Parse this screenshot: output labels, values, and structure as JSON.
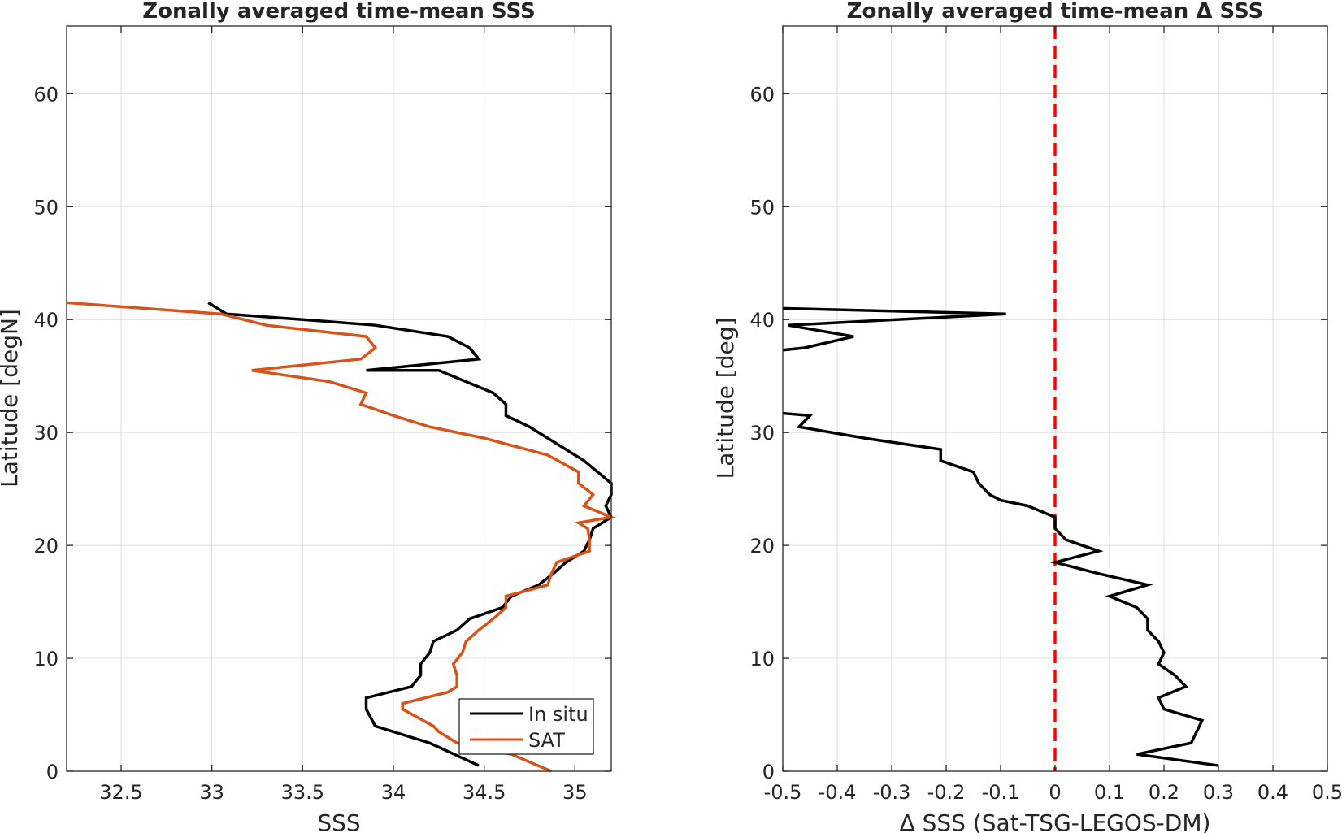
{
  "chart_data": [
    {
      "type": "line",
      "title": "Zonally averaged time-mean SSS",
      "xlabel": "SSS",
      "ylabel": "Latitude [degN]",
      "xlim": [
        32.2,
        35.2
      ],
      "ylim": [
        0,
        66
      ],
      "xticks": [
        32.5,
        33,
        33.5,
        34,
        34.5,
        35
      ],
      "xtick_labels": [
        "32.5",
        "33",
        "33.5",
        "34",
        "34.5",
        "35"
      ],
      "yticks": [
        0,
        10,
        20,
        30,
        40,
        50,
        60
      ],
      "ytick_labels": [
        "0",
        "10",
        "20",
        "30",
        "40",
        "50",
        "60"
      ],
      "grid": true,
      "legend": {
        "position": "bottom-right"
      },
      "series": [
        {
          "name": "In situ",
          "color": "#000000",
          "points": [
            [
              34.47,
              0.5
            ],
            [
              34.2,
              2.5
            ],
            [
              33.9,
              4.0
            ],
            [
              33.85,
              5.5
            ],
            [
              33.85,
              6.5
            ],
            [
              34.1,
              7.5
            ],
            [
              34.15,
              8.5
            ],
            [
              34.15,
              9.5
            ],
            [
              34.2,
              10.5
            ],
            [
              34.22,
              11.5
            ],
            [
              34.35,
              12.5
            ],
            [
              34.42,
              13.5
            ],
            [
              34.6,
              14.5
            ],
            [
              34.65,
              15.5
            ],
            [
              34.8,
              16.5
            ],
            [
              34.88,
              17.5
            ],
            [
              34.95,
              18.5
            ],
            [
              35.05,
              19.5
            ],
            [
              35.08,
              20.5
            ],
            [
              35.1,
              21.5
            ],
            [
              35.2,
              22.5
            ],
            [
              35.17,
              23.5
            ],
            [
              35.2,
              24.5
            ],
            [
              35.2,
              25.5
            ],
            [
              35.05,
              27.5
            ],
            [
              34.95,
              28.5
            ],
            [
              34.85,
              29.5
            ],
            [
              34.75,
              30.5
            ],
            [
              34.62,
              31.5
            ],
            [
              34.62,
              32.5
            ],
            [
              34.55,
              33.5
            ],
            [
              34.4,
              34.5
            ],
            [
              34.25,
              35.5
            ],
            [
              33.85,
              35.5
            ],
            [
              34.47,
              36.5
            ],
            [
              34.42,
              37.5
            ],
            [
              34.3,
              38.5
            ],
            [
              34.1,
              39.0
            ],
            [
              33.9,
              39.5
            ],
            [
              33.5,
              40.0
            ],
            [
              33.08,
              40.5
            ],
            [
              32.98,
              41.5
            ]
          ]
        },
        {
          "name": "SAT",
          "color": "#d95319",
          "points": [
            [
              34.87,
              0.0
            ],
            [
              34.65,
              1.5
            ],
            [
              34.35,
              2.5
            ],
            [
              34.25,
              3.5
            ],
            [
              34.22,
              4.0
            ],
            [
              34.05,
              5.5
            ],
            [
              34.05,
              6.0
            ],
            [
              34.3,
              7.0
            ],
            [
              34.35,
              7.5
            ],
            [
              34.35,
              8.5
            ],
            [
              34.33,
              9.5
            ],
            [
              34.38,
              10.5
            ],
            [
              34.4,
              11.5
            ],
            [
              34.47,
              12.5
            ],
            [
              34.55,
              13.5
            ],
            [
              34.62,
              14.5
            ],
            [
              34.62,
              15.5
            ],
            [
              34.85,
              16.5
            ],
            [
              34.87,
              17.5
            ],
            [
              34.9,
              18.5
            ],
            [
              35.08,
              19.5
            ],
            [
              35.08,
              20.5
            ],
            [
              35.07,
              21.5
            ],
            [
              35.02,
              22.0
            ],
            [
              35.2,
              22.5
            ],
            [
              35.05,
              23.5
            ],
            [
              35.1,
              24.5
            ],
            [
              35.02,
              25.5
            ],
            [
              35.02,
              26.5
            ],
            [
              34.85,
              28.0
            ],
            [
              34.5,
              29.5
            ],
            [
              34.2,
              30.5
            ],
            [
              34.0,
              31.5
            ],
            [
              33.82,
              32.5
            ],
            [
              33.85,
              33.5
            ],
            [
              33.65,
              34.5
            ],
            [
              33.22,
              35.5
            ],
            [
              33.82,
              36.5
            ],
            [
              33.9,
              37.5
            ],
            [
              33.85,
              38.5
            ],
            [
              33.3,
              39.5
            ],
            [
              33.05,
              40.5
            ],
            [
              32.2,
              41.5
            ]
          ]
        }
      ]
    },
    {
      "type": "line",
      "title": "Zonally averaged time-mean Δ SSS",
      "xlabel": "Δ SSS (Sat-TSG-LEGOS-DM)",
      "ylabel": "Latitude [deg]",
      "xlim": [
        -0.5,
        0.5
      ],
      "ylim": [
        0,
        66
      ],
      "xticks": [
        -0.5,
        -0.4,
        -0.3,
        -0.2,
        -0.1,
        0,
        0.1,
        0.2,
        0.3,
        0.4,
        0.5
      ],
      "xtick_labels": [
        "-0.5",
        "-0.4",
        "-0.3",
        "-0.2",
        "-0.1",
        "0",
        "0.1",
        "0.2",
        "0.3",
        "0.4",
        "0.5"
      ],
      "yticks": [
        0,
        10,
        20,
        30,
        40,
        50,
        60
      ],
      "ytick_labels": [
        "0",
        "10",
        "20",
        "30",
        "40",
        "50",
        "60"
      ],
      "grid": true,
      "reference_line": {
        "x": 0,
        "color": "#ff0000",
        "style": "dashed"
      },
      "series": [
        {
          "color": "#000000",
          "segments": [
            [
              [
                0.3,
                0.5
              ],
              [
                0.15,
                1.5
              ],
              [
                0.25,
                2.5
              ],
              [
                0.26,
                3.5
              ],
              [
                0.27,
                4.5
              ],
              [
                0.2,
                5.5
              ],
              [
                0.19,
                6.5
              ],
              [
                0.24,
                7.5
              ],
              [
                0.22,
                8.5
              ],
              [
                0.19,
                9.5
              ],
              [
                0.2,
                10.5
              ],
              [
                0.19,
                11.5
              ],
              [
                0.17,
                12.5
              ],
              [
                0.17,
                13.5
              ],
              [
                0.15,
                14.5
              ],
              [
                0.1,
                15.5
              ],
              [
                0.17,
                16.5
              ],
              [
                0.08,
                17.5
              ],
              [
                0.0,
                18.5
              ],
              [
                0.08,
                19.5
              ],
              [
                0.02,
                20.5
              ],
              [
                0.0,
                21.5
              ],
              [
                0.0,
                22.5
              ],
              [
                -0.05,
                23.5
              ],
              [
                -0.1,
                24.0
              ],
              [
                -0.12,
                24.5
              ],
              [
                -0.14,
                25.5
              ],
              [
                -0.15,
                26.5
              ],
              [
                -0.21,
                27.5
              ],
              [
                -0.21,
                28.5
              ],
              [
                -0.35,
                29.5
              ],
              [
                -0.47,
                30.5
              ],
              [
                -0.45,
                31.5
              ],
              [
                -0.5,
                31.7
              ]
            ],
            [
              [
                -0.5,
                37.3
              ],
              [
                -0.46,
                37.5
              ],
              [
                -0.37,
                38.5
              ],
              [
                -0.49,
                39.5
              ],
              [
                -0.09,
                40.5
              ],
              [
                -0.5,
                41.0
              ]
            ]
          ]
        }
      ]
    }
  ],
  "legend": {
    "items": [
      {
        "label": "In situ",
        "color": "#000000"
      },
      {
        "label": "SAT",
        "color": "#d95319"
      }
    ]
  }
}
